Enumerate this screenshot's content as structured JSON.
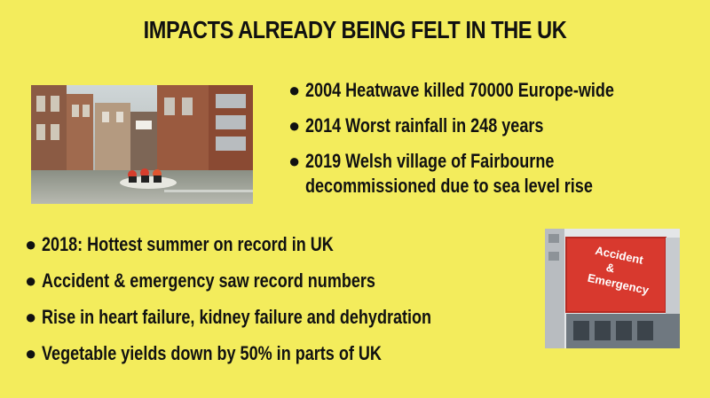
{
  "slide": {
    "title": "IMPACTS ALREADY BEING FELT IN THE UK",
    "bullet_glyph": "●",
    "top_bullets": [
      "2004 Heatwave killed 70000 Europe-wide",
      "2014 Worst rainfall in 248 years",
      "2019 Welsh village of Fairbourne",
      "decommissioned due to sea level rise"
    ],
    "bottom_bullets": [
      "2018: Hottest summer on record in UK",
      "Accident & emergency saw record numbers",
      "Rise in heart failure, kidney failure and dehydration",
      "Vegetable yields down by 50% in parts of UK"
    ],
    "ae_sign": {
      "line1": "Accident",
      "line2": "&",
      "line3": "Emergency"
    },
    "colors": {
      "background": "#f3ec5c",
      "text": "#111111",
      "sign_red": "#d8392e"
    }
  }
}
